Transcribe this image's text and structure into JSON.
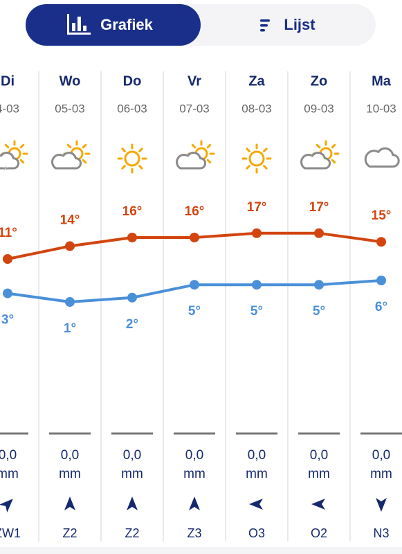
{
  "tabs": {
    "active": "Grafiek",
    "other": "Lijst"
  },
  "days": [
    {
      "day": "Di",
      "date": "4-03",
      "max": 11,
      "max_label": "11°",
      "min": 3,
      "min_label": "3°",
      "rain": "0,0",
      "unit": "mm",
      "wind": "ZW1"
    },
    {
      "day": "Wo",
      "date": "05-03",
      "max": 14,
      "max_label": "14°",
      "min": 1,
      "min_label": "1°",
      "rain": "0,0",
      "unit": "mm",
      "wind": "Z2"
    },
    {
      "day": "Do",
      "date": "06-03",
      "max": 16,
      "max_label": "16°",
      "min": 2,
      "min_label": "2°",
      "rain": "0,0",
      "unit": "mm",
      "wind": "Z2"
    },
    {
      "day": "Vr",
      "date": "07-03",
      "max": 16,
      "max_label": "16°",
      "min": 5,
      "min_label": "5°",
      "rain": "0,0",
      "unit": "mm",
      "wind": "Z3"
    },
    {
      "day": "Za",
      "date": "08-03",
      "max": 17,
      "max_label": "17°",
      "min": 5,
      "min_label": "5°",
      "rain": "0,0",
      "unit": "mm",
      "wind": "O3"
    },
    {
      "day": "Zo",
      "date": "09-03",
      "max": 17,
      "max_label": "17°",
      "min": 5,
      "min_label": "5°",
      "rain": "0,0",
      "unit": "mm",
      "wind": "O2"
    },
    {
      "day": "Ma",
      "date": "10-03",
      "max": 15,
      "max_label": "15°",
      "min": 6,
      "min_label": "6°",
      "rain": "0,0",
      "unit": "mm",
      "wind": "N3"
    }
  ]
}
